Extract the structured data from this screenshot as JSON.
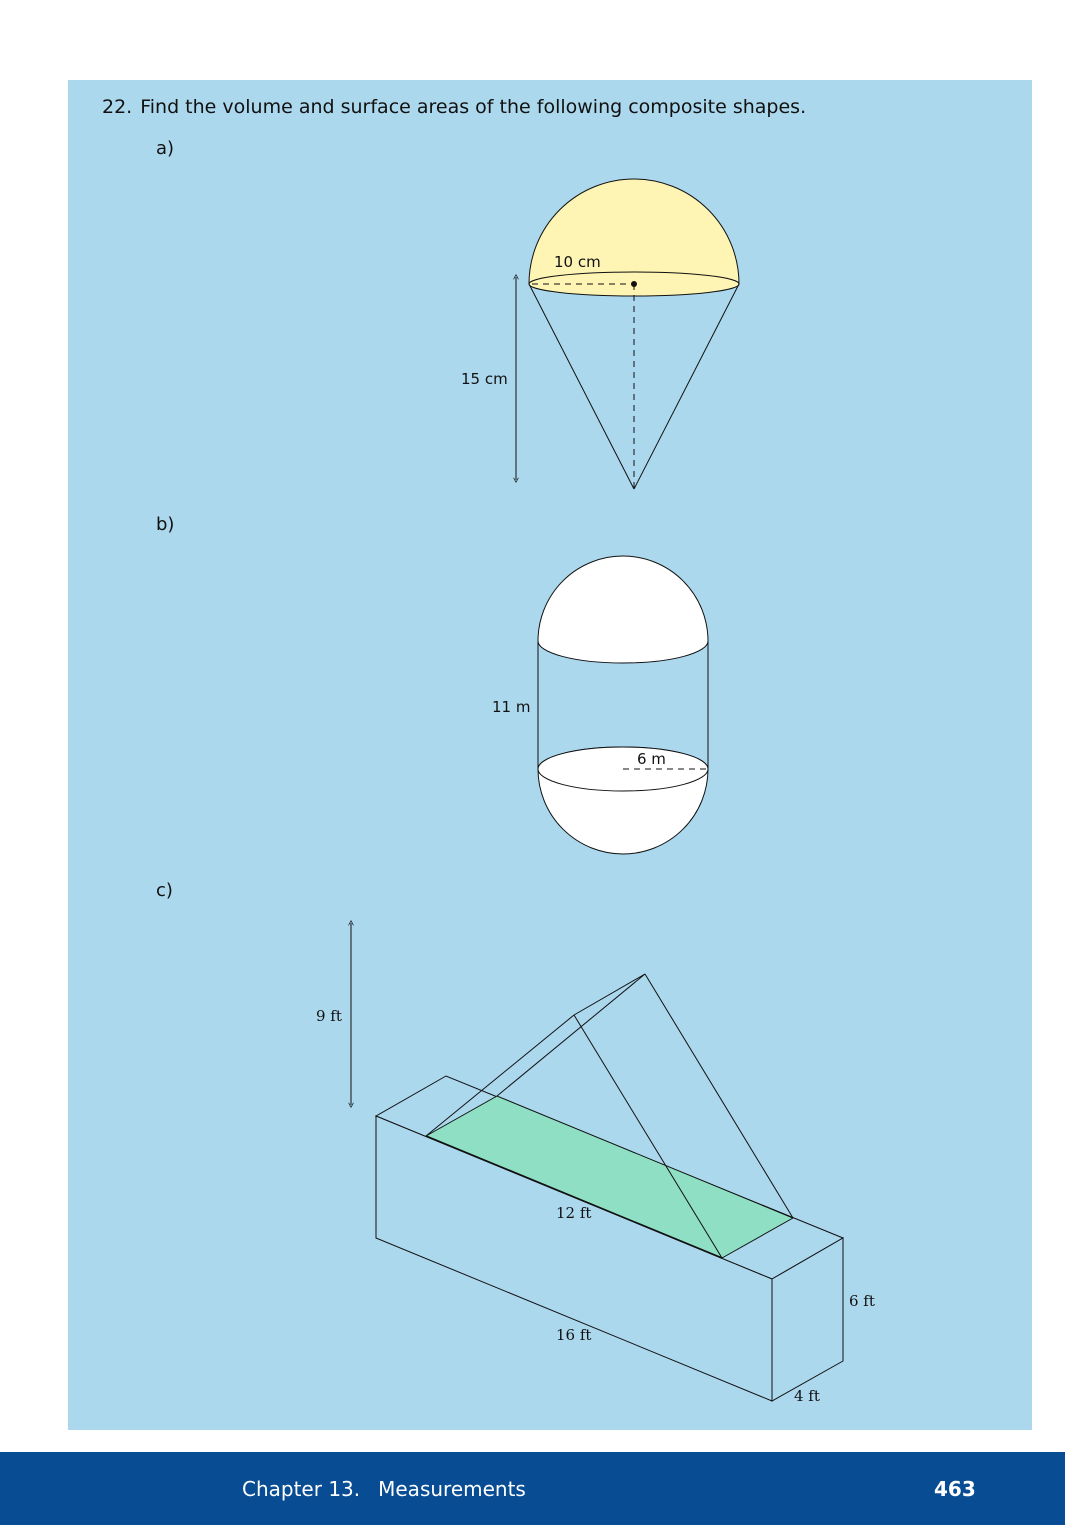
{
  "question": {
    "number": "22.",
    "text": "Find the volume and surface areas of the following composite shapes."
  },
  "parts": [
    {
      "label": "a)",
      "radius_label": "10 cm",
      "height_label": "15 cm"
    },
    {
      "label": "b)",
      "height_label": "11 m",
      "radius_label": "6 m"
    },
    {
      "label": "c)",
      "prism_height_label": "9 ft",
      "prism_length_label": "12 ft",
      "box_length_label": "16 ft",
      "box_height_label": "6 ft",
      "box_width_label": "4 ft"
    }
  ],
  "colors": {
    "panel": "#acd8ee",
    "hemisphere_fill": "#fef4b4",
    "rectangle_fill": "#8edfc4",
    "footer": "#084c94"
  },
  "footer": {
    "chapter": "Chapter 13.",
    "title": "Measurements",
    "page_number": "463"
  }
}
